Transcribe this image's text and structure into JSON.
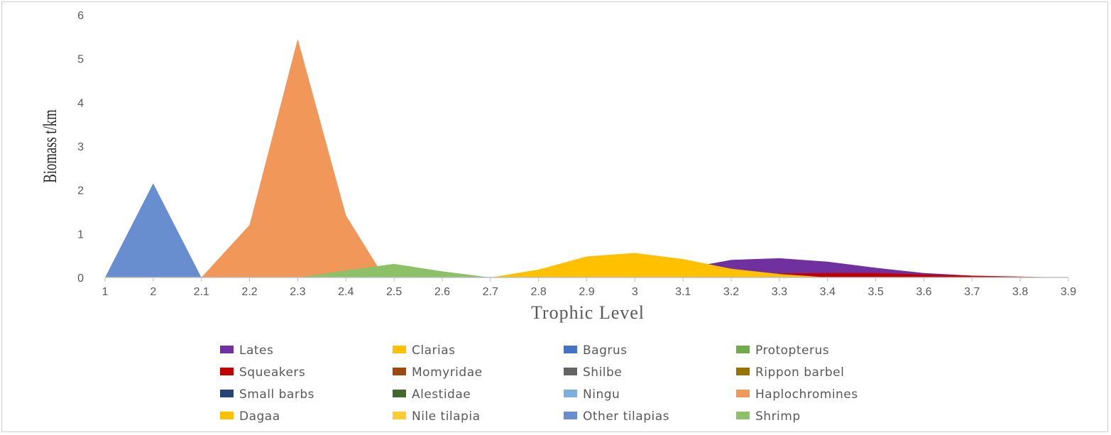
{
  "chart_data": {
    "type": "area",
    "xlabel": "Trophic Level",
    "ylabel": "Biomass t/km",
    "xlim": [
      1,
      3.9
    ],
    "ylim": [
      0,
      6
    ],
    "x_ticks": [
      "1",
      "2",
      "2.1",
      "2.2",
      "2.3",
      "2.4",
      "2.5",
      "2.6",
      "2.7",
      "2.8",
      "2.9",
      "3",
      "3.1",
      "3.2",
      "3.3",
      "3.4",
      "3.5",
      "3.6",
      "3.7",
      "3.8",
      "3.9"
    ],
    "y_ticks": [
      "0",
      "1",
      "2",
      "3",
      "4",
      "5",
      "6"
    ],
    "series": [
      {
        "name": "Lates",
        "color": "#7030a0",
        "points": [
          [
            3.0,
            0.0
          ],
          [
            3.1,
            0.2
          ],
          [
            3.2,
            0.4
          ],
          [
            3.3,
            0.44
          ],
          [
            3.4,
            0.36
          ],
          [
            3.5,
            0.22
          ],
          [
            3.6,
            0.1
          ],
          [
            3.7,
            0.04
          ],
          [
            3.8,
            0.01
          ],
          [
            3.88,
            0.0
          ]
        ]
      },
      {
        "name": "Clarias",
        "color": "#ffc000",
        "points": []
      },
      {
        "name": "Bagrus",
        "color": "#4472c4",
        "points": []
      },
      {
        "name": "Protopterus",
        "color": "#70ad47",
        "points": []
      },
      {
        "name": "Squeakers",
        "color": "#c00000",
        "points": [
          [
            3.2,
            0.0
          ],
          [
            3.3,
            0.09
          ],
          [
            3.4,
            0.1
          ],
          [
            3.5,
            0.1
          ],
          [
            3.6,
            0.07
          ],
          [
            3.7,
            0.04
          ],
          [
            3.8,
            0.02
          ],
          [
            3.88,
            0.0
          ]
        ]
      },
      {
        "name": "Momyridae",
        "color": "#9e480e",
        "points": []
      },
      {
        "name": "Shilbe",
        "color": "#636363",
        "points": []
      },
      {
        "name": "Rippon barbel",
        "color": "#997300",
        "points": []
      },
      {
        "name": "Small barbs",
        "color": "#264478",
        "points": []
      },
      {
        "name": "Alestidae",
        "color": "#43682b",
        "points": []
      },
      {
        "name": "Ningu",
        "color": "#7cafdd",
        "points": []
      },
      {
        "name": "Haplochromines",
        "color": "#f1975a",
        "points": [
          [
            2.1,
            0.0
          ],
          [
            2.2,
            1.2
          ],
          [
            2.3,
            5.45
          ],
          [
            2.4,
            1.42
          ],
          [
            2.48,
            0.0
          ]
        ]
      },
      {
        "name": "Dagaa",
        "color": "#ffc000",
        "points": [
          [
            2.7,
            0.0
          ],
          [
            2.8,
            0.18
          ],
          [
            2.9,
            0.48
          ],
          [
            3.0,
            0.56
          ],
          [
            3.1,
            0.42
          ],
          [
            3.2,
            0.2
          ],
          [
            3.3,
            0.08
          ],
          [
            3.4,
            0.0
          ]
        ]
      },
      {
        "name": "Nile tilapia",
        "color": "#ffcd33",
        "points": []
      },
      {
        "name": "Other tilapias",
        "color": "#698ed0",
        "points": [
          [
            1.0,
            0.0
          ],
          [
            2.0,
            2.15
          ],
          [
            2.1,
            0.0
          ]
        ]
      },
      {
        "name": "Shrimp",
        "color": "#8cc168",
        "points": [
          [
            2.3,
            0.0
          ],
          [
            2.4,
            0.16
          ],
          [
            2.5,
            0.31
          ],
          [
            2.6,
            0.14
          ],
          [
            2.7,
            0.0
          ]
        ]
      }
    ]
  }
}
